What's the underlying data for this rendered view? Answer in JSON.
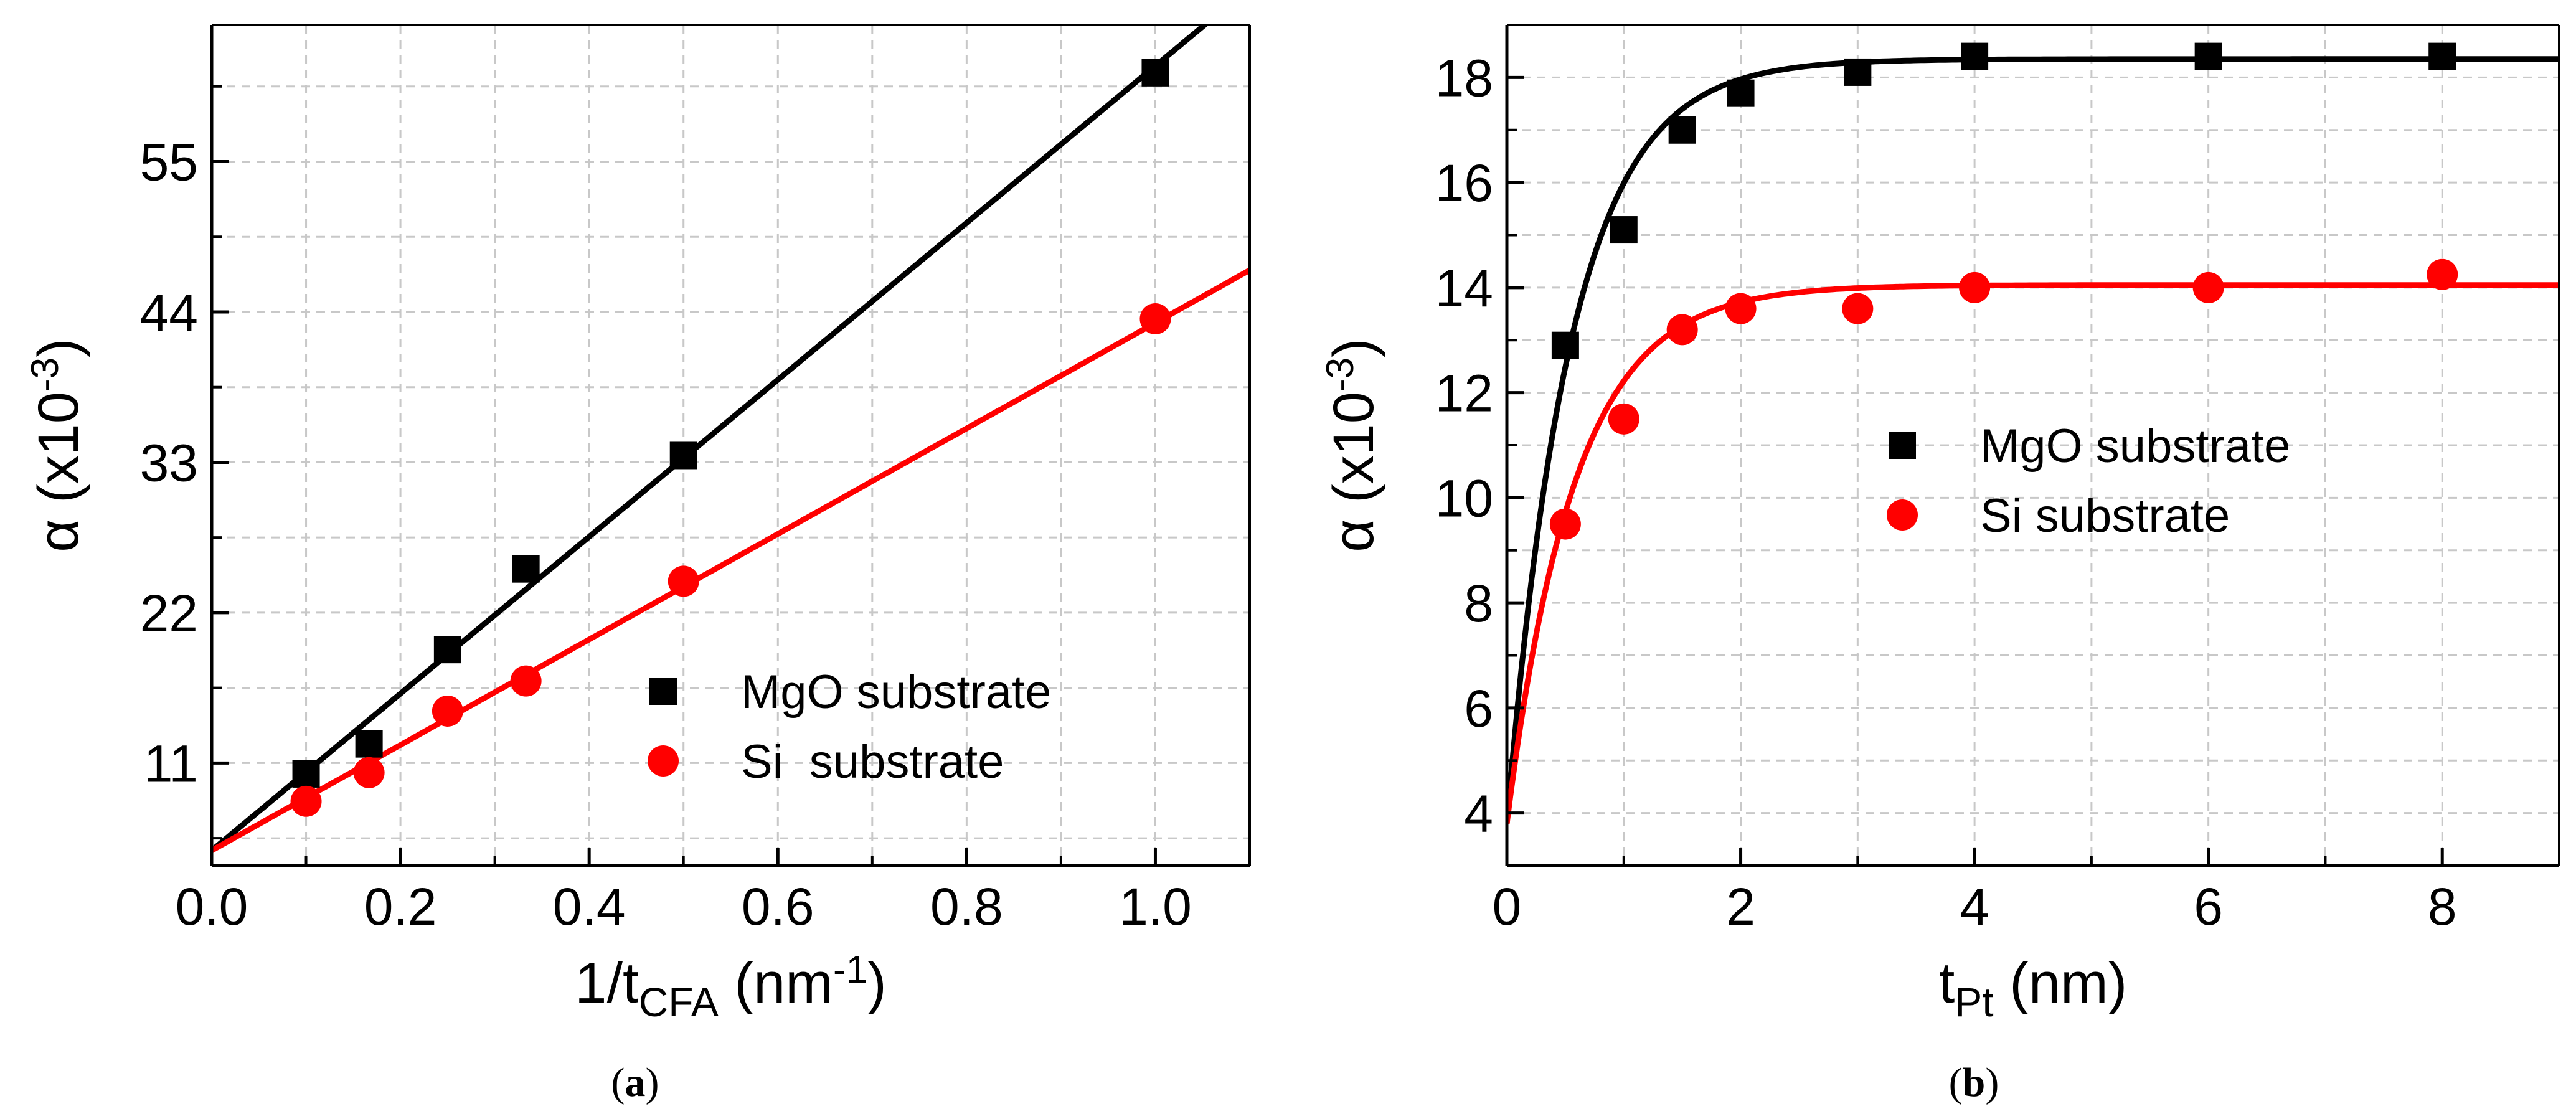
{
  "chart_data": [
    {
      "id": "a",
      "type": "scatter",
      "caption_letter": "a",
      "xlabel": "1/t",
      "xlabel_sub": "CFA",
      "xlabel_unit_pre": " (nm",
      "xlabel_unit_sup": "-1",
      "xlabel_unit_post": ")",
      "ylabel": "α (x10",
      "ylabel_sup": "-3",
      "ylabel_post": ")",
      "xlim": [
        0.0,
        1.1
      ],
      "ylim": [
        3.5,
        65
      ],
      "x_ticks": [
        0.0,
        0.2,
        0.4,
        0.6,
        0.8,
        1.0
      ],
      "x_tick_labels": [
        "0.0",
        "0.2",
        "0.4",
        "0.6",
        "0.8",
        "1.0"
      ],
      "y_ticks": [
        11,
        22,
        33,
        44,
        55
      ],
      "y_tick_labels": [
        "11",
        "22",
        "33",
        "44",
        "55"
      ],
      "grid": true,
      "legend_position": "center-right",
      "series": [
        {
          "name": "MgO substrate",
          "color": "#000000",
          "marker": "square",
          "x": [
            0.1,
            0.1667,
            0.25,
            0.333,
            0.5,
            1.0
          ],
          "y": [
            10.2,
            12.4,
            19.3,
            25.2,
            33.5,
            61.5
          ],
          "fit": {
            "kind": "linear",
            "intercept": 4.6,
            "slope": 57.4
          }
        },
        {
          "name": "Si  substrate",
          "color": "#ff0000",
          "marker": "circle",
          "x": [
            0.1,
            0.1667,
            0.25,
            0.333,
            0.5,
            1.0
          ],
          "y": [
            8.2,
            10.3,
            14.8,
            17.0,
            24.3,
            43.5
          ],
          "fit": {
            "kind": "linear",
            "intercept": 4.6,
            "slope": 38.6
          }
        }
      ]
    },
    {
      "id": "b",
      "type": "scatter",
      "caption_letter": "b",
      "xlabel": "t",
      "xlabel_sub": "Pt",
      "xlabel_unit_pre": " (nm)",
      "xlabel_unit_sup": "",
      "xlabel_unit_post": "",
      "ylabel": "α (x10",
      "ylabel_sup": "-3",
      "ylabel_post": ")",
      "xlim": [
        0,
        9
      ],
      "ylim": [
        3,
        19
      ],
      "x_ticks": [
        0,
        2,
        4,
        6,
        8
      ],
      "x_tick_labels": [
        "0",
        "2",
        "4",
        "6",
        "8"
      ],
      "y_ticks": [
        4,
        6,
        8,
        10,
        12,
        14,
        16,
        18
      ],
      "y_tick_labels": [
        "4",
        "6",
        "8",
        "10",
        "12",
        "14",
        "16",
        "18"
      ],
      "grid": true,
      "legend_position": "center",
      "series": [
        {
          "name": "MgO substrate",
          "color": "#000000",
          "marker": "square",
          "x": [
            0.5,
            1.0,
            1.5,
            2.0,
            3.0,
            4.0,
            6.0,
            8.0
          ],
          "y": [
            12.9,
            15.1,
            17.0,
            17.7,
            18.1,
            18.4,
            18.4,
            18.4
          ],
          "fit": {
            "kind": "saturation",
            "a0": 3.8,
            "a_inf": 18.35,
            "tau": 0.55
          }
        },
        {
          "name": "Si substrate",
          "color": "#ff0000",
          "marker": "circle",
          "x": [
            0.5,
            1.0,
            1.5,
            2.0,
            3.0,
            4.0,
            6.0,
            8.0
          ],
          "y": [
            9.5,
            11.5,
            13.2,
            13.6,
            13.6,
            14.0,
            14.0,
            14.25
          ],
          "fit": {
            "kind": "saturation",
            "a0": 3.8,
            "a_inf": 14.05,
            "tau": 0.58
          }
        }
      ]
    }
  ]
}
